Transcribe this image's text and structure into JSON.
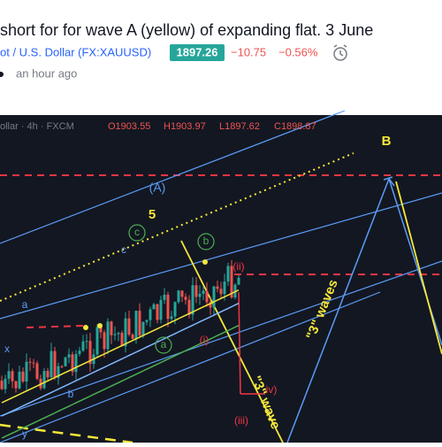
{
  "header": {
    "title": "short for for wave A (yellow) of expanding flat. 3 June",
    "symbol": "ot / U.S. Dollar (FX:XAUUSD)",
    "price": "1897.26",
    "change": "−10.75",
    "change_pct": "−0.56%",
    "time": "an hour ago"
  },
  "chart": {
    "legend": {
      "symbol_interval": "ollar · 4h · FXCM",
      "open": "O1903.55",
      "high": "H1903.97",
      "low": "L1897.62",
      "close": "C1898.87"
    },
    "labels": [
      "B",
      "(A)",
      "5",
      "c",
      "c",
      "b",
      "(ii)",
      "a",
      "x",
      "(i)",
      "a",
      "b",
      "\"3\" waves",
      "\"3\" wave",
      "iv)",
      "(iii)",
      "y"
    ]
  }
}
